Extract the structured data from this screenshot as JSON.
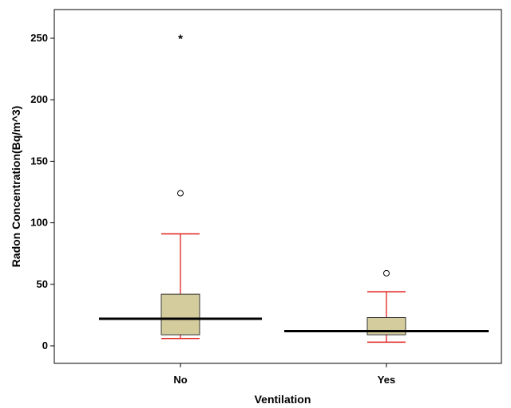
{
  "chart_data": {
    "type": "boxplot",
    "xlabel": "Ventilation",
    "ylabel": "Radon Concentration(Bq/m^3)",
    "ylim": [
      -15,
      275
    ],
    "yticks": [
      0,
      50,
      100,
      150,
      200,
      250
    ],
    "categories": [
      "No",
      "Yes"
    ],
    "boxes": [
      {
        "category": "No",
        "whisker_low": 6,
        "q1": 9,
        "median": 22,
        "q3": 42,
        "whisker_high": 91,
        "outliers": [
          124
        ],
        "extremes": [
          251
        ]
      },
      {
        "category": "Yes",
        "whisker_low": 3,
        "q1": 9,
        "median": 12,
        "q3": 23,
        "whisker_high": 44,
        "outliers": [
          59
        ],
        "extremes": []
      }
    ],
    "colors": {
      "box_fill": "#d4cc9c",
      "whisker": "#e0201c",
      "median": "#000000",
      "frame": "#000000"
    },
    "grid": false,
    "extreme_marker": "*"
  }
}
